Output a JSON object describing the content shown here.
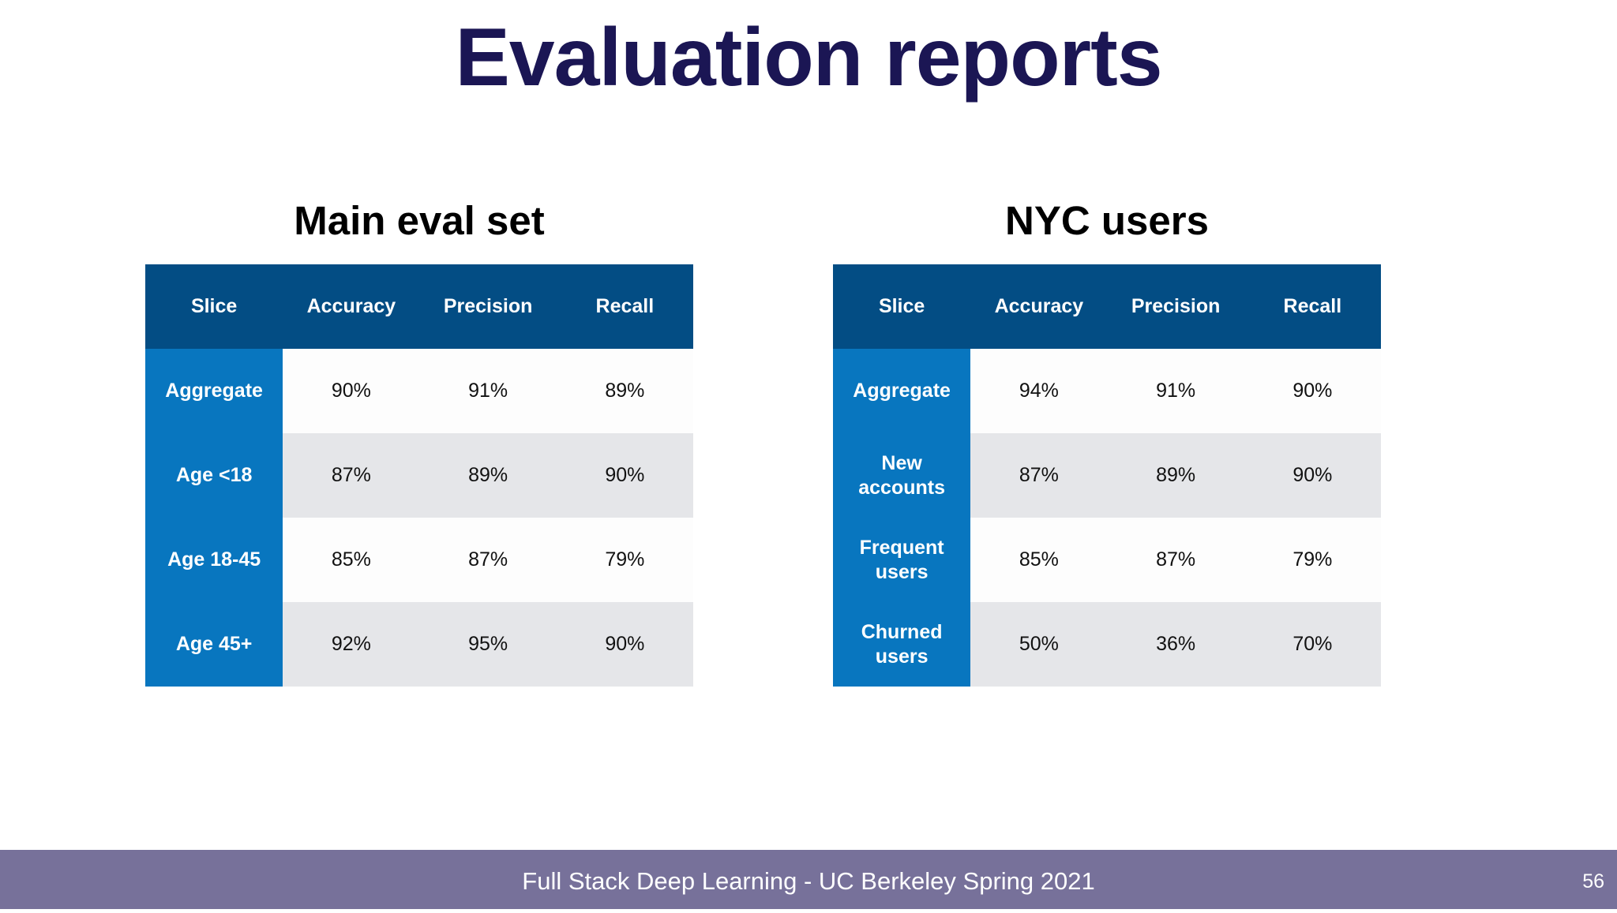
{
  "title": "Evaluation reports",
  "tables": [
    {
      "heading": "Main eval set",
      "columns": [
        "Slice",
        "Accuracy",
        "Precision",
        "Recall"
      ],
      "rows": [
        {
          "slice": "Aggregate",
          "accuracy": "90%",
          "precision": "91%",
          "recall": "89%"
        },
        {
          "slice": "Age <18",
          "accuracy": "87%",
          "precision": "89%",
          "recall": "90%"
        },
        {
          "slice": "Age 18-45",
          "accuracy": "85%",
          "precision": "87%",
          "recall": "79%"
        },
        {
          "slice": "Age 45+",
          "accuracy": "92%",
          "precision": "95%",
          "recall": "90%"
        }
      ]
    },
    {
      "heading": "NYC users",
      "columns": [
        "Slice",
        "Accuracy",
        "Precision",
        "Recall"
      ],
      "rows": [
        {
          "slice": "Aggregate",
          "accuracy": "94%",
          "precision": "91%",
          "recall": "90%"
        },
        {
          "slice": "New accounts",
          "accuracy": "87%",
          "precision": "89%",
          "recall": "90%"
        },
        {
          "slice": "Frequent users",
          "accuracy": "85%",
          "precision": "87%",
          "recall": "79%"
        },
        {
          "slice": "Churned users",
          "accuracy": "50%",
          "precision": "36%",
          "recall": "70%"
        }
      ]
    }
  ],
  "footer": {
    "text": "Full Stack Deep Learning - UC Berkeley Spring 2021",
    "page_number": "56"
  },
  "colors": {
    "title": "#1b1654",
    "header_bg": "#034d84",
    "slice_bg": "#0876bf",
    "row_odd_bg": "#fdfdfd",
    "row_even_bg": "#e5e6e9",
    "footer_bg": "#77719a"
  }
}
